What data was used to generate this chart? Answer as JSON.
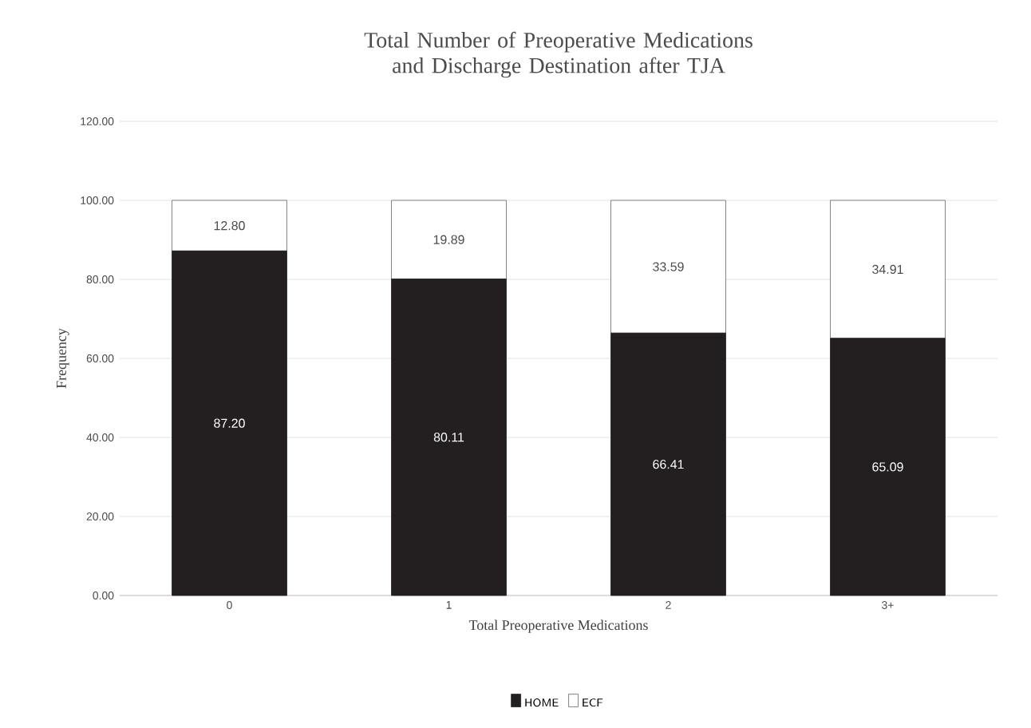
{
  "chart_data": {
    "type": "bar",
    "stacked": true,
    "title": "Total Number of Preoperative Medications and Discharge Destination after TJA",
    "xlabel": "Total Preoperative Medications",
    "ylabel": "Frequency",
    "categories": [
      "0",
      "1",
      "2",
      "3+"
    ],
    "series": [
      {
        "name": "HOME",
        "color": "#231f20",
        "values": [
          87.2,
          80.11,
          66.41,
          65.09
        ],
        "value_labels": [
          "87.20",
          "80.11",
          "66.41",
          "65.09"
        ]
      },
      {
        "name": "ECF",
        "color": "#ffffff",
        "values": [
          12.8,
          19.89,
          33.59,
          34.91
        ],
        "value_labels": [
          "12.80",
          "19.89",
          "33.59",
          "34.91"
        ]
      }
    ],
    "ylim": [
      0,
      120
    ],
    "yticks": [
      {
        "value": 0,
        "label": "0.00"
      },
      {
        "value": 20,
        "label": "20.00"
      },
      {
        "value": 40,
        "label": "40.00"
      },
      {
        "value": 60,
        "label": "60.00"
      },
      {
        "value": 80,
        "label": "80.00"
      },
      {
        "value": 100,
        "label": "100.00"
      },
      {
        "value": 120,
        "label": "120.00"
      }
    ],
    "grid": "y",
    "legend": "bottom"
  }
}
